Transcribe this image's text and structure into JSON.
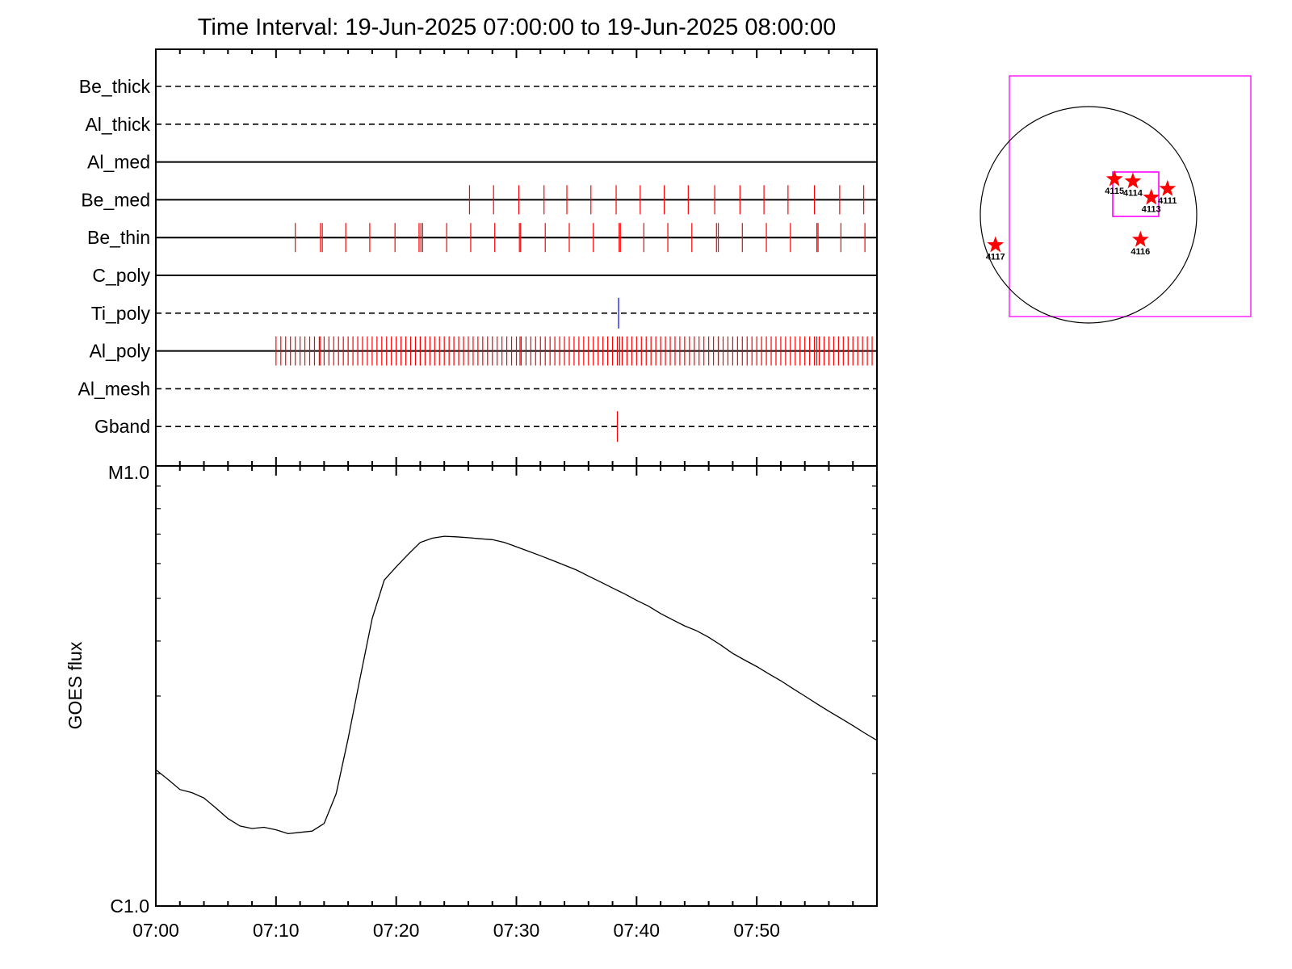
{
  "title": "Time Interval: 19-Jun-2025 07:00:00 to 19-Jun-2025 08:00:00",
  "colors": {
    "event_red": "#ff0000",
    "event_blue": "#0000ff",
    "box_magenta": "#ff00ff",
    "line_black": "#000000"
  },
  "chart_data": [
    {
      "type": "event-timeline",
      "time_range": [
        "07:00",
        "08:00"
      ],
      "rows": [
        {
          "name": "Be_thick",
          "style": "dashed",
          "events": []
        },
        {
          "name": "Al_thick",
          "style": "dashed",
          "events": []
        },
        {
          "name": "Al_med",
          "style": "solid",
          "events": []
        },
        {
          "name": "Be_med",
          "style": "solid",
          "color": "#ff0000",
          "events": [
            26.1,
            28.1,
            30.2,
            32.3,
            34.2,
            36.2,
            38.3,
            40.3,
            42.3,
            44.3,
            46.5,
            48.6,
            50.6,
            52.6,
            54.8,
            56.9,
            58.9
          ]
        },
        {
          "name": "Be_thin",
          "style": "solid",
          "color": "#ff0000",
          "events": [
            11.6,
            13.7,
            13.85,
            15.8,
            17.8,
            19.9,
            21.9,
            22.05,
            22.2,
            24.2,
            26.2,
            28.2,
            30.25,
            30.35,
            32.4,
            34.4,
            36.4,
            38.55,
            38.65,
            40.6,
            42.6,
            44.6,
            46.65,
            46.8,
            48.8,
            50.8,
            52.8,
            55.0,
            55.1,
            57.0,
            59.0
          ]
        },
        {
          "name": "C_poly",
          "style": "solid",
          "events": []
        },
        {
          "name": "Ti_poly",
          "style": "dashed",
          "color": "#0000ff",
          "events": [
            38.5
          ]
        },
        {
          "name": "Al_poly",
          "style": "solid",
          "color": "#ff0000",
          "events_start": 10.0,
          "events_end": 59.9,
          "events_step": 0.4,
          "events_extra": [
            13.7,
            22.0,
            30.3,
            38.6,
            46.8,
            55.0
          ]
        },
        {
          "name": "Al_mesh",
          "style": "dashed",
          "events": []
        },
        {
          "name": "Gband",
          "style": "dashed",
          "color": "#ff0000",
          "events": [
            38.4
          ]
        }
      ]
    },
    {
      "type": "line",
      "ylabel": "GOES flux",
      "yscale": "log",
      "ylim": [
        1e-06,
        1e-05
      ],
      "ytick_labels": [
        "C1.0",
        "M1.0"
      ],
      "xlabel": "",
      "xlim": [
        "07:00",
        "08:00"
      ],
      "xtick_labels": [
        "07:00",
        "07:10",
        "07:20",
        "07:30",
        "07:40",
        "07:50"
      ],
      "series": [
        {
          "color": "#000000",
          "x": [
            0,
            1,
            2,
            3,
            4,
            5,
            6,
            7,
            8,
            9,
            10,
            11,
            12,
            13,
            14,
            15,
            16,
            17,
            18,
            19,
            20,
            21,
            22,
            23,
            24,
            25,
            26,
            27,
            28,
            29,
            30,
            31,
            32,
            33,
            34,
            35,
            36,
            37,
            38,
            39,
            40,
            41,
            42,
            43,
            44,
            45,
            46,
            47,
            48,
            49,
            50,
            51,
            52,
            53,
            54,
            55,
            56,
            57,
            58,
            59,
            60
          ],
          "y": [
            2.04e-06,
            1.94e-06,
            1.84e-06,
            1.81e-06,
            1.76e-06,
            1.67e-06,
            1.58e-06,
            1.52e-06,
            1.5e-06,
            1.51e-06,
            1.49e-06,
            1.46e-06,
            1.47e-06,
            1.48e-06,
            1.54e-06,
            1.8e-06,
            2.4e-06,
            3.3e-06,
            4.5e-06,
            5.5e-06,
            5.9e-06,
            6.3e-06,
            6.7e-06,
            6.85e-06,
            6.92e-06,
            6.9e-06,
            6.87e-06,
            6.83e-06,
            6.8e-06,
            6.7e-06,
            6.55e-06,
            6.4e-06,
            6.25e-06,
            6.1e-06,
            5.95e-06,
            5.8e-06,
            5.62e-06,
            5.45e-06,
            5.28e-06,
            5.12e-06,
            4.95e-06,
            4.8e-06,
            4.62e-06,
            4.47e-06,
            4.33e-06,
            4.22e-06,
            4.08e-06,
            3.92e-06,
            3.75e-06,
            3.62e-06,
            3.5e-06,
            3.37e-06,
            3.25e-06,
            3.12e-06,
            3e-06,
            2.88e-06,
            2.77e-06,
            2.67e-06,
            2.57e-06,
            2.47e-06,
            2.38e-06
          ]
        }
      ]
    },
    {
      "type": "scatter",
      "description": "solar disk locator with active regions",
      "points": [
        {
          "label": "4111",
          "x": 0.73,
          "y": 0.24
        },
        {
          "label": "4113",
          "x": 0.58,
          "y": 0.16
        },
        {
          "label": "4114",
          "x": 0.41,
          "y": 0.31
        },
        {
          "label": "4115",
          "x": 0.24,
          "y": 0.33
        },
        {
          "label": "4116",
          "x": 0.48,
          "y": -0.23
        },
        {
          "label": "4117",
          "x": -0.86,
          "y": -0.28
        }
      ]
    }
  ]
}
